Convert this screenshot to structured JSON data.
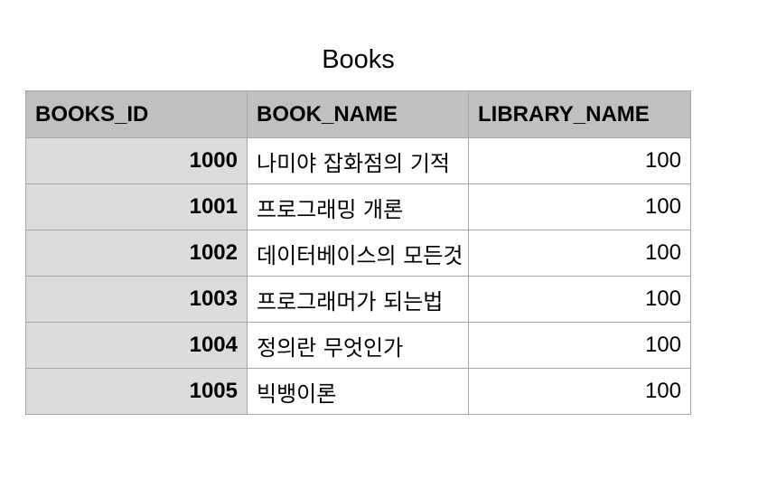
{
  "title": "Books",
  "table": {
    "headers": [
      "BOOKS_ID",
      "BOOK_NAME",
      "LIBRARY_NAME"
    ],
    "rows": [
      {
        "books_id": "1000",
        "book_name": "나미야 잡화점의 기적",
        "library_name": "100"
      },
      {
        "books_id": "1001",
        "book_name": "프로그래밍 개론",
        "library_name": "100"
      },
      {
        "books_id": "1002",
        "book_name": "데이터베이스의 모든것",
        "library_name": "100"
      },
      {
        "books_id": "1003",
        "book_name": "프로그래머가 되는법",
        "library_name": "100"
      },
      {
        "books_id": "1004",
        "book_name": "정의란 무엇인가",
        "library_name": "100"
      },
      {
        "books_id": "1005",
        "book_name": "빅뱅이론",
        "library_name": "100"
      }
    ]
  },
  "colors": {
    "header_background": "#bfc0bf",
    "id_column_background": "#dcdcdc",
    "grid_line": "#a7a7a7"
  }
}
